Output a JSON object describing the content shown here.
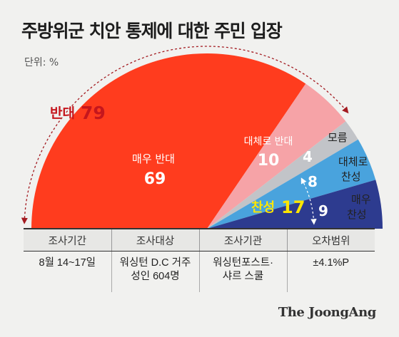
{
  "header": {
    "title": "주방위군 치안 통제에 대한 주민 입장",
    "unit": "단위: %"
  },
  "chart_data": {
    "type": "pie",
    "subtype": "semicircle",
    "slices": [
      {
        "label": "매우 반대",
        "value": 69,
        "color": "#ff3c1e"
      },
      {
        "label": "대체로 반대",
        "value": 10,
        "color": "#f6a3a7"
      },
      {
        "label": "모름",
        "value": 4,
        "color": "#c2c4c8"
      },
      {
        "label": "대체로 찬성",
        "value": 8,
        "color": "#49a3dd"
      },
      {
        "label": "매우 찬성",
        "value": 9,
        "color": "#2d3b8f"
      }
    ],
    "groups": {
      "oppose": {
        "label": "반대",
        "value": "79",
        "color": "#c5161d"
      },
      "support": {
        "label": "찬성",
        "value": "17",
        "color": "#ffe600"
      }
    },
    "slice_labels": {
      "very_oppose": {
        "name": "매우 반대",
        "value": "69"
      },
      "somewhat_oppose": {
        "name": "대체로 반대",
        "value": "10"
      },
      "unknown": {
        "name": "모름",
        "value": "4"
      },
      "somewhat_support": {
        "name_line1": "대체로",
        "name_line2": "찬성",
        "value": "8"
      },
      "very_support": {
        "name_line1": "매우",
        "name_line2": "찬성",
        "value": "9"
      }
    }
  },
  "survey_table": {
    "headers": [
      "조사기간",
      "조사대상",
      "조사기관",
      "오차범위"
    ],
    "values": [
      "8월 14~17일",
      "워싱턴 D.C 거주\n성인 604명",
      "워싱턴포스트·\n샤르 스쿨",
      "±4.1%P"
    ]
  },
  "brand": "The JoongAng"
}
